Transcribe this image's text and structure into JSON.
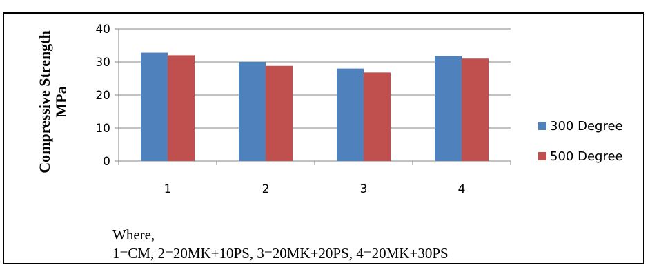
{
  "chart_data": {
    "type": "bar",
    "categories": [
      "1",
      "2",
      "3",
      "4"
    ],
    "series": [
      {
        "name": "300 Degree",
        "values": [
          32.8,
          30.0,
          28.0,
          31.8
        ],
        "color": "#4f81bd"
      },
      {
        "name": "500 Degree",
        "values": [
          32.0,
          28.8,
          26.8,
          31.0
        ],
        "color": "#c0504d"
      }
    ],
    "yticks": [
      "0",
      "10",
      "20",
      "30",
      "40"
    ],
    "ylim": [
      0,
      40
    ],
    "ylabel_line1": "Compressive Strength",
    "ylabel_line2": "MPa",
    "grid": true,
    "legend_position": "right"
  },
  "note": {
    "line1": "Where,",
    "line2": "1=CM, 2=20MK+10PS, 3=20MK+20PS, 4=20MK+30PS"
  }
}
